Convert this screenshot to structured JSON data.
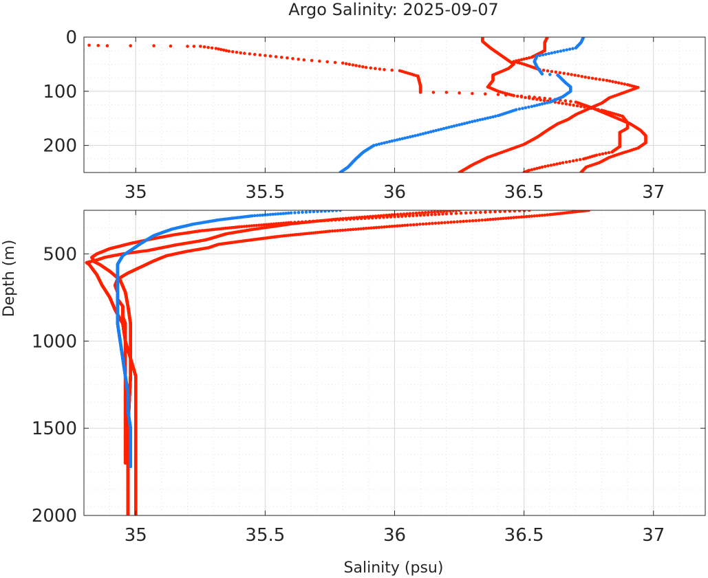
{
  "title": "Argo Salinity: 2025-09-07",
  "xlabel": "Salinity (psu)",
  "ylabel": "Depth (m)",
  "colors": {
    "red_profiles": "#ff2200",
    "blue_profile": "#1a7ff0",
    "grid_major": "#d8d8d8",
    "grid_minor": "#e0e0e0",
    "axes": "#262626"
  },
  "chart_data": [
    {
      "type": "scatter",
      "panel": "upper",
      "xlim": [
        34.8,
        37.2
      ],
      "ylim": [
        0,
        250
      ],
      "y_reversed": true,
      "x_ticks": [
        "35",
        "35.5",
        "36",
        "36.5",
        "37"
      ],
      "y_ticks": [
        "0",
        "100",
        "200"
      ],
      "grid": "major and minor",
      "series": [
        {
          "color": "red",
          "points": [
            [
              34.82,
              15
            ],
            [
              34.89,
              16
            ],
            [
              35.07,
              16
            ],
            [
              35.2,
              17
            ],
            [
              35.25,
              17
            ],
            [
              35.31,
              21
            ],
            [
              35.36,
              26
            ],
            [
              35.42,
              30
            ],
            [
              35.52,
              35
            ],
            [
              35.65,
              42
            ],
            [
              35.8,
              48
            ],
            [
              35.89,
              56
            ],
            [
              35.96,
              60
            ],
            [
              36.02,
              62
            ],
            [
              36.09,
              72
            ],
            [
              36.1,
              90
            ],
            [
              36.1,
              102
            ],
            [
              36.2,
              102
            ],
            [
              36.3,
              104
            ],
            [
              36.4,
              106
            ],
            [
              36.52,
              110
            ],
            [
              36.6,
              114
            ],
            [
              36.7,
              120
            ],
            [
              36.76,
              130
            ],
            [
              36.81,
              140
            ],
            [
              36.86,
              150
            ],
            [
              36.91,
              160
            ],
            [
              36.95,
              172
            ],
            [
              36.97,
              182
            ],
            [
              36.97,
              195
            ],
            [
              36.94,
              205
            ],
            [
              36.88,
              214
            ],
            [
              36.83,
              222
            ],
            [
              36.79,
              232
            ],
            [
              36.74,
              240
            ],
            [
              36.72,
              250
            ]
          ]
        },
        {
          "color": "red",
          "points": [
            [
              36.34,
              0
            ],
            [
              36.34,
              8
            ],
            [
              36.37,
              20
            ],
            [
              36.4,
              30
            ],
            [
              36.43,
              40
            ],
            [
              36.46,
              50
            ],
            [
              36.44,
              58
            ],
            [
              36.38,
              70
            ],
            [
              36.38,
              80
            ],
            [
              36.36,
              92
            ],
            [
              36.4,
              100
            ],
            [
              36.46,
              108
            ],
            [
              36.55,
              115
            ],
            [
              36.62,
              120
            ],
            [
              36.72,
              128
            ],
            [
              36.8,
              135
            ],
            [
              36.88,
              146
            ],
            [
              36.9,
              158
            ],
            [
              36.9,
              168
            ],
            [
              36.87,
              176
            ],
            [
              36.87,
              190
            ],
            [
              36.87,
              202
            ],
            [
              36.84,
              212
            ],
            [
              36.78,
              218
            ],
            [
              36.73,
              225
            ],
            [
              36.65,
              232
            ],
            [
              36.57,
              240
            ],
            [
              36.52,
              246
            ],
            [
              36.5,
              250
            ]
          ]
        },
        {
          "color": "red",
          "points": [
            [
              36.59,
              0
            ],
            [
              36.58,
              10
            ],
            [
              36.58,
              25
            ],
            [
              36.53,
              37
            ],
            [
              36.46,
              45
            ],
            [
              36.5,
              50
            ],
            [
              36.56,
              60
            ],
            [
              36.67,
              68
            ],
            [
              36.75,
              75
            ],
            [
              36.82,
              80
            ],
            [
              36.9,
              88
            ],
            [
              36.94,
              93
            ],
            [
              36.9,
              100
            ],
            [
              36.83,
              112
            ],
            [
              36.8,
              122
            ],
            [
              36.76,
              130
            ],
            [
              36.7,
              143
            ],
            [
              36.67,
              152
            ],
            [
              36.63,
              160
            ],
            [
              36.59,
              172
            ],
            [
              36.55,
              185
            ],
            [
              36.5,
              198
            ],
            [
              36.43,
              210
            ],
            [
              36.36,
              222
            ],
            [
              36.3,
              236
            ],
            [
              36.25,
              250
            ]
          ]
        },
        {
          "color": "blue",
          "points": [
            [
              36.73,
              0
            ],
            [
              36.72,
              10
            ],
            [
              36.7,
              20
            ],
            [
              36.63,
              27
            ],
            [
              36.55,
              35
            ],
            [
              36.54,
              45
            ],
            [
              36.55,
              55
            ],
            [
              36.57,
              68
            ],
            [
              36.63,
              70
            ],
            [
              36.66,
              84
            ],
            [
              36.68,
              92
            ],
            [
              36.68,
              100
            ],
            [
              36.65,
              110
            ],
            [
              36.6,
              120
            ],
            [
              36.53,
              128
            ],
            [
              36.47,
              134
            ],
            [
              36.4,
              145
            ],
            [
              36.3,
              156
            ],
            [
              36.18,
              170
            ],
            [
              36.08,
              182
            ],
            [
              35.98,
              193
            ],
            [
              35.92,
              200
            ],
            [
              35.88,
              212
            ],
            [
              35.85,
              225
            ],
            [
              35.82,
              240
            ],
            [
              35.79,
              250
            ]
          ]
        }
      ]
    },
    {
      "type": "scatter",
      "panel": "lower",
      "xlim": [
        34.8,
        37.2
      ],
      "ylim": [
        250,
        2000
      ],
      "y_reversed": true,
      "x_ticks": [
        "35",
        "35.5",
        "36",
        "36.5",
        "37"
      ],
      "y_ticks": [
        "500",
        "1000",
        "1500",
        "2000"
      ],
      "grid": "major and minor",
      "series": [
        {
          "color": "red",
          "points": [
            [
              36.75,
              250
            ],
            [
              36.6,
              275
            ],
            [
              36.35,
              305
            ],
            [
              36.05,
              335
            ],
            [
              35.75,
              370
            ],
            [
              35.55,
              400
            ],
            [
              35.42,
              425
            ],
            [
              35.32,
              445
            ],
            [
              35.28,
              465
            ],
            [
              35.2,
              485
            ],
            [
              35.12,
              510
            ],
            [
              35.07,
              540
            ],
            [
              35.02,
              575
            ],
            [
              34.97,
              610
            ],
            [
              34.93,
              645
            ],
            [
              34.92,
              680
            ],
            [
              34.93,
              720
            ],
            [
              34.93,
              760
            ],
            [
              34.95,
              800
            ],
            [
              34.95,
              860
            ],
            [
              34.96,
              900
            ],
            [
              34.96,
              1000
            ],
            [
              34.98,
              1100
            ],
            [
              35.0,
              1200
            ],
            [
              35.0,
              1400
            ],
            [
              35.0,
              1600
            ],
            [
              35.0,
              1800
            ],
            [
              35.0,
              2000
            ]
          ]
        },
        {
          "color": "red",
          "points": [
            [
              36.52,
              250
            ],
            [
              36.2,
              270
            ],
            [
              35.9,
              295
            ],
            [
              35.6,
              320
            ],
            [
              35.4,
              345
            ],
            [
              35.25,
              368
            ],
            [
              35.15,
              390
            ],
            [
              35.07,
              412
            ],
            [
              34.98,
              440
            ],
            [
              34.9,
              470
            ],
            [
              34.85,
              500
            ],
            [
              34.83,
              520
            ],
            [
              34.84,
              545
            ],
            [
              34.86,
              560
            ],
            [
              34.9,
              600
            ],
            [
              34.94,
              650
            ],
            [
              34.96,
              720
            ],
            [
              34.97,
              800
            ],
            [
              34.98,
              900
            ],
            [
              34.98,
              1000
            ],
            [
              34.98,
              1200
            ],
            [
              34.97,
              1500
            ],
            [
              34.97,
              2000
            ]
          ]
        },
        {
          "color": "red",
          "points": [
            [
              36.25,
              250
            ],
            [
              36.0,
              275
            ],
            [
              35.78,
              300
            ],
            [
              35.6,
              328
            ],
            [
              35.45,
              360
            ],
            [
              35.35,
              385
            ],
            [
              35.27,
              420
            ],
            [
              35.15,
              450
            ],
            [
              35.05,
              480
            ],
            [
              34.95,
              500
            ],
            [
              34.88,
              520
            ],
            [
              34.85,
              535
            ],
            [
              34.81,
              550
            ],
            [
              34.82,
              560
            ],
            [
              34.85,
              620
            ],
            [
              34.87,
              680
            ],
            [
              34.9,
              750
            ],
            [
              34.92,
              820
            ],
            [
              34.95,
              900
            ],
            [
              34.96,
              1000
            ],
            [
              34.96,
              1200
            ],
            [
              34.96,
              1500
            ],
            [
              34.96,
              1700
            ]
          ]
        },
        {
          "color": "blue",
          "points": [
            [
              35.79,
              250
            ],
            [
              35.6,
              265
            ],
            [
              35.45,
              282
            ],
            [
              35.32,
              305
            ],
            [
              35.22,
              330
            ],
            [
              35.14,
              358
            ],
            [
              35.07,
              395
            ],
            [
              35.02,
              440
            ],
            [
              34.98,
              480
            ],
            [
              34.95,
              510
            ],
            [
              34.93,
              560
            ],
            [
              34.93,
              620
            ],
            [
              34.93,
              700
            ],
            [
              34.93,
              800
            ],
            [
              34.93,
              900
            ],
            [
              34.94,
              1000
            ],
            [
              34.95,
              1100
            ],
            [
              34.96,
              1200
            ],
            [
              34.97,
              1300
            ],
            [
              34.97,
              1400
            ],
            [
              34.98,
              1500
            ],
            [
              34.98,
              1600
            ],
            [
              34.98,
              1720
            ]
          ]
        }
      ]
    }
  ]
}
